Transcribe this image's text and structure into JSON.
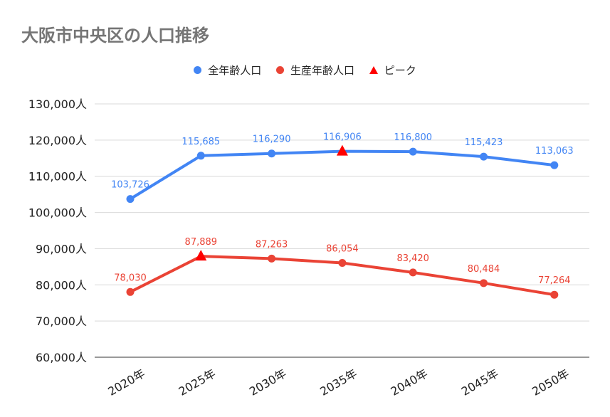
{
  "chart_data": {
    "type": "line",
    "title": "大阪市中央区の人口推移",
    "categories": [
      "2020年",
      "2025年",
      "2030年",
      "2035年",
      "2040年",
      "2045年",
      "2050年"
    ],
    "series": [
      {
        "name": "全年齢人口",
        "color": "#4285f4",
        "values": [
          103726,
          115685,
          116290,
          116906,
          116800,
          115423,
          113063
        ],
        "labels": [
          "103,726",
          "115,685",
          "116,290",
          "116,906",
          "116,800",
          "115,423",
          "113,063"
        ],
        "peak_index": 3
      },
      {
        "name": "生産年齢人口",
        "color": "#ea4335",
        "values": [
          78030,
          87889,
          87263,
          86054,
          83420,
          80484,
          77264
        ],
        "labels": [
          "78,030",
          "87,889",
          "87,263",
          "86,054",
          "83,420",
          "80,484",
          "77,264"
        ],
        "peak_index": 1
      }
    ],
    "peak_marker": {
      "name": "ピーク",
      "color": "#ff0000",
      "shape": "triangle"
    },
    "ylim": [
      60000,
      130000
    ],
    "yticks": [
      60000,
      70000,
      80000,
      90000,
      100000,
      110000,
      120000,
      130000
    ],
    "ytick_labels": [
      "60,000人",
      "70,000人",
      "80,000人",
      "90,000人",
      "100,000人",
      "110,000人",
      "120,000人",
      "130,000人"
    ],
    "grid": true,
    "legend_position": "top"
  }
}
